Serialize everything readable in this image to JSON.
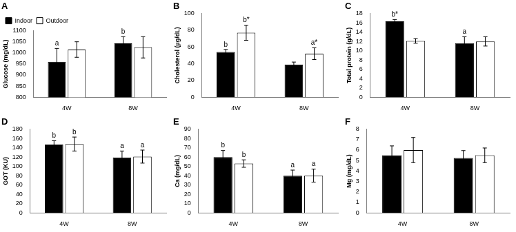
{
  "chart_data": [
    {
      "type": "bar",
      "title": "A",
      "y_label": "Glucose (mg/dL)",
      "categories": [
        "4W",
        "8W"
      ],
      "series": [
        {
          "name": "Indoor",
          "color": "#000000",
          "values": [
            960,
            1043
          ],
          "errors": [
            60,
            30
          ],
          "annotations": [
            "a",
            "b"
          ]
        },
        {
          "name": "Outdoor",
          "color": "#ffffff",
          "values": [
            1015,
            1025
          ],
          "errors": [
            35,
            48
          ],
          "annotations": [
            null,
            null
          ]
        }
      ],
      "ylim": [
        800,
        1100
      ],
      "yticks": [
        800,
        850,
        900,
        950,
        1000,
        1050,
        1100
      ],
      "grid": false,
      "legend": "top"
    },
    {
      "type": "bar",
      "title": "B",
      "y_label": "Cholesterol (µg/dL)",
      "categories": [
        "4W",
        "8W"
      ],
      "series": [
        {
          "name": "Indoor",
          "color": "#000000",
          "values": [
            54,
            39
          ],
          "errors": [
            3,
            3
          ],
          "annotations": [
            "b",
            null
          ]
        },
        {
          "name": "Outdoor",
          "color": "#ffffff",
          "values": [
            77,
            52
          ],
          "errors": [
            9,
            7
          ],
          "annotations": [
            "b*",
            "a*"
          ]
        }
      ],
      "ylim": [
        0,
        100
      ],
      "yticks": [
        0,
        20,
        40,
        60,
        80,
        100
      ],
      "grid": false,
      "legend": false
    },
    {
      "type": "bar",
      "title": "C",
      "y_label": "Total protein (g/dL)",
      "categories": [
        "4W",
        "8W"
      ],
      "series": [
        {
          "name": "Indoor",
          "color": "#000000",
          "values": [
            16.3,
            11.6
          ],
          "errors": [
            0.4,
            1.4
          ],
          "annotations": [
            "b*",
            "a"
          ]
        },
        {
          "name": "Outdoor",
          "color": "#ffffff",
          "values": [
            12.1,
            12
          ],
          "errors": [
            0.5,
            1.0
          ],
          "annotations": [
            null,
            null
          ]
        }
      ],
      "ylim": [
        0,
        18
      ],
      "yticks": [
        0,
        2,
        4,
        6,
        8,
        10,
        12,
        14,
        16,
        18
      ],
      "grid": false,
      "legend": false
    },
    {
      "type": "bar",
      "title": "D",
      "y_label": "GOT (KU)",
      "categories": [
        "4W",
        "8W"
      ],
      "series": [
        {
          "name": "Indoor",
          "color": "#000000",
          "values": [
            147,
            119
          ],
          "errors": [
            8,
            14
          ],
          "annotations": [
            "b",
            "a"
          ]
        },
        {
          "name": "Outdoor",
          "color": "#ffffff",
          "values": [
            148,
            121
          ],
          "errors": [
            15,
            14
          ],
          "annotations": [
            "b",
            "a"
          ]
        }
      ],
      "ylim": [
        0,
        180
      ],
      "yticks": [
        0,
        20,
        40,
        60,
        80,
        100,
        120,
        140,
        160,
        180
      ],
      "grid": false,
      "legend": false
    },
    {
      "type": "bar",
      "title": "E",
      "y_label": "Ca (mg/dL)",
      "categories": [
        "4W",
        "8W"
      ],
      "series": [
        {
          "name": "Indoor",
          "color": "#000000",
          "values": [
            60,
            40
          ],
          "errors": [
            7,
            6
          ],
          "annotations": [
            "b",
            "a"
          ]
        },
        {
          "name": "Outdoor",
          "color": "#ffffff",
          "values": [
            53,
            40
          ],
          "errors": [
            4,
            7
          ],
          "annotations": [
            "b",
            "a"
          ]
        }
      ],
      "ylim": [
        0,
        90
      ],
      "yticks": [
        0,
        10,
        20,
        30,
        40,
        50,
        60,
        70,
        80,
        90
      ],
      "grid": false,
      "legend": false
    },
    {
      "type": "bar",
      "title": "F",
      "y_label": "Mg (mg/dL)",
      "categories": [
        "4W",
        "8W"
      ],
      "series": [
        {
          "name": "Indoor",
          "color": "#000000",
          "values": [
            5.5,
            5.25
          ],
          "errors": [
            0.9,
            0.7
          ],
          "annotations": [
            null,
            null
          ]
        },
        {
          "name": "Outdoor",
          "color": "#ffffff",
          "values": [
            6.0,
            5.5
          ],
          "errors": [
            1.2,
            0.7
          ],
          "annotations": [
            null,
            null
          ]
        }
      ],
      "ylim": [
        0,
        8
      ],
      "yticks": [
        0,
        1,
        2,
        3,
        4,
        5,
        6,
        7,
        8
      ],
      "grid": false,
      "legend": false
    }
  ]
}
